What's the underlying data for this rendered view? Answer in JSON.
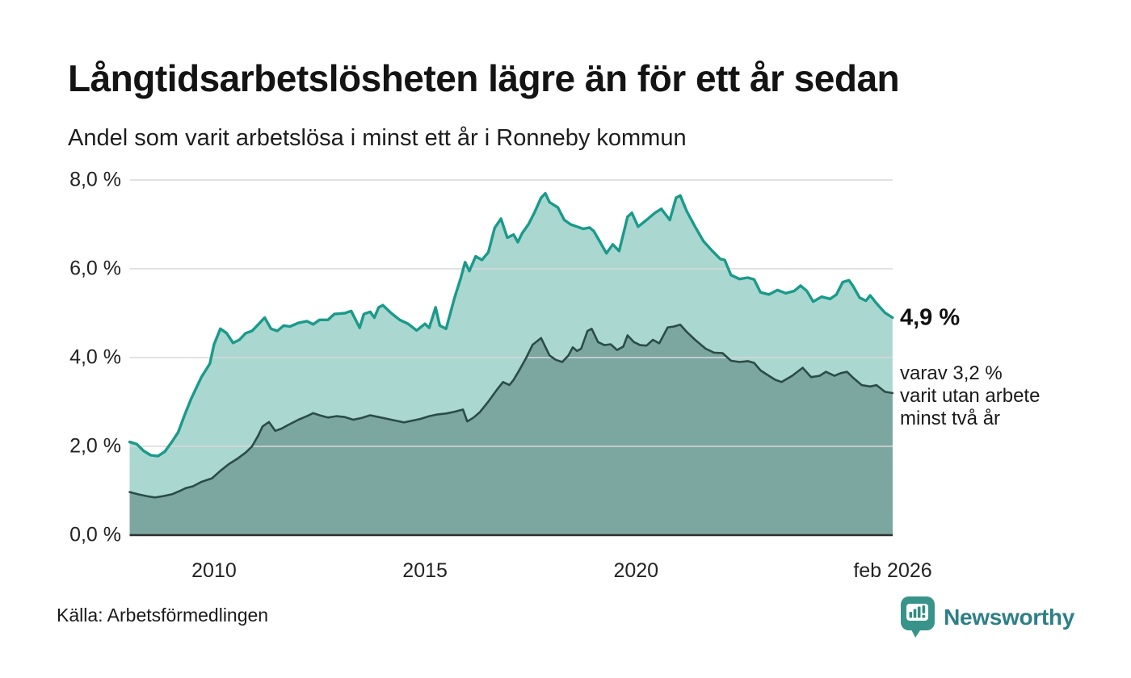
{
  "header": {
    "title": "Långtidsarbetslösheten lägre än för ett år sedan",
    "subtitle": "Andel som varit arbetslösa i minst ett år i Ronneby kommun"
  },
  "chart_data": {
    "type": "area",
    "title": "Långtidsarbetslösheten lägre än för ett år sedan",
    "subtitle": "Andel som varit arbetslösa i minst ett år i Ronneby kommun",
    "unit": "%",
    "grid": true,
    "x_axis": {
      "range": [
        2008.0,
        2026.083
      ],
      "ticks": [
        {
          "label": "2010",
          "year": 2010
        },
        {
          "label": "2015",
          "year": 2015
        },
        {
          "label": "2020",
          "year": 2020
        },
        {
          "label": "feb 2026",
          "year": 2026.083
        }
      ]
    },
    "y_axis": {
      "range": [
        0,
        8
      ],
      "ticks": [
        {
          "label": "8,0 %",
          "value": 8
        },
        {
          "label": "6,0 %",
          "value": 6
        },
        {
          "label": "4,0 %",
          "value": 4
        },
        {
          "label": "2,0 %",
          "value": 2
        },
        {
          "label": "0,0 %",
          "value": 0
        }
      ]
    },
    "series": [
      {
        "name": "arbetslösa i minst ett år",
        "color": "#1a9a8a",
        "fill": "#aad7d0",
        "last_value_label": "4,9 %",
        "points": [
          [
            2008.0,
            2.1
          ],
          [
            2008.17,
            2.05
          ],
          [
            2008.33,
            1.9
          ],
          [
            2008.5,
            1.8
          ],
          [
            2008.67,
            1.78
          ],
          [
            2008.83,
            1.88
          ],
          [
            2009.0,
            2.1
          ],
          [
            2009.15,
            2.32
          ],
          [
            2009.3,
            2.7
          ],
          [
            2009.46,
            3.08
          ],
          [
            2009.7,
            3.56
          ],
          [
            2009.9,
            3.86
          ],
          [
            2010.0,
            4.3
          ],
          [
            2010.15,
            4.65
          ],
          [
            2010.3,
            4.55
          ],
          [
            2010.45,
            4.33
          ],
          [
            2010.6,
            4.4
          ],
          [
            2010.75,
            4.55
          ],
          [
            2010.9,
            4.6
          ],
          [
            2011.05,
            4.75
          ],
          [
            2011.2,
            4.9
          ],
          [
            2011.35,
            4.65
          ],
          [
            2011.5,
            4.6
          ],
          [
            2011.65,
            4.72
          ],
          [
            2011.8,
            4.7
          ],
          [
            2012.0,
            4.78
          ],
          [
            2012.2,
            4.82
          ],
          [
            2012.35,
            4.75
          ],
          [
            2012.5,
            4.85
          ],
          [
            2012.7,
            4.85
          ],
          [
            2012.85,
            4.98
          ],
          [
            2013.1,
            5.0
          ],
          [
            2013.25,
            5.05
          ],
          [
            2013.45,
            4.67
          ],
          [
            2013.55,
            4.98
          ],
          [
            2013.7,
            5.03
          ],
          [
            2013.8,
            4.9
          ],
          [
            2013.9,
            5.13
          ],
          [
            2014.0,
            5.18
          ],
          [
            2014.2,
            5.0
          ],
          [
            2014.4,
            4.85
          ],
          [
            2014.6,
            4.76
          ],
          [
            2014.8,
            4.61
          ],
          [
            2015.0,
            4.76
          ],
          [
            2015.1,
            4.67
          ],
          [
            2015.25,
            5.13
          ],
          [
            2015.35,
            4.72
          ],
          [
            2015.5,
            4.65
          ],
          [
            2015.7,
            5.35
          ],
          [
            2015.85,
            5.8
          ],
          [
            2015.95,
            6.15
          ],
          [
            2016.05,
            5.95
          ],
          [
            2016.2,
            6.28
          ],
          [
            2016.35,
            6.2
          ],
          [
            2016.5,
            6.37
          ],
          [
            2016.65,
            6.92
          ],
          [
            2016.8,
            7.13
          ],
          [
            2016.95,
            6.7
          ],
          [
            2017.1,
            6.77
          ],
          [
            2017.2,
            6.6
          ],
          [
            2017.3,
            6.8
          ],
          [
            2017.45,
            7.0
          ],
          [
            2017.6,
            7.28
          ],
          [
            2017.75,
            7.6
          ],
          [
            2017.85,
            7.7
          ],
          [
            2017.95,
            7.5
          ],
          [
            2018.05,
            7.44
          ],
          [
            2018.15,
            7.38
          ],
          [
            2018.3,
            7.1
          ],
          [
            2018.45,
            7.0
          ],
          [
            2018.6,
            6.95
          ],
          [
            2018.75,
            6.9
          ],
          [
            2018.9,
            6.93
          ],
          [
            2019.0,
            6.85
          ],
          [
            2019.15,
            6.6
          ],
          [
            2019.3,
            6.35
          ],
          [
            2019.45,
            6.55
          ],
          [
            2019.6,
            6.4
          ],
          [
            2019.8,
            7.17
          ],
          [
            2019.9,
            7.26
          ],
          [
            2020.05,
            6.95
          ],
          [
            2020.25,
            7.1
          ],
          [
            2020.45,
            7.26
          ],
          [
            2020.6,
            7.35
          ],
          [
            2020.8,
            7.1
          ],
          [
            2020.95,
            7.6
          ],
          [
            2021.05,
            7.65
          ],
          [
            2021.2,
            7.3
          ],
          [
            2021.4,
            6.95
          ],
          [
            2021.6,
            6.62
          ],
          [
            2021.8,
            6.41
          ],
          [
            2022.0,
            6.22
          ],
          [
            2022.1,
            6.2
          ],
          [
            2022.25,
            5.86
          ],
          [
            2022.45,
            5.77
          ],
          [
            2022.65,
            5.8
          ],
          [
            2022.8,
            5.76
          ],
          [
            2022.95,
            5.47
          ],
          [
            2023.15,
            5.42
          ],
          [
            2023.35,
            5.52
          ],
          [
            2023.55,
            5.45
          ],
          [
            2023.75,
            5.5
          ],
          [
            2023.9,
            5.62
          ],
          [
            2024.05,
            5.5
          ],
          [
            2024.2,
            5.26
          ],
          [
            2024.4,
            5.37
          ],
          [
            2024.6,
            5.32
          ],
          [
            2024.75,
            5.42
          ],
          [
            2024.9,
            5.7
          ],
          [
            2025.05,
            5.74
          ],
          [
            2025.15,
            5.6
          ],
          [
            2025.3,
            5.35
          ],
          [
            2025.45,
            5.28
          ],
          [
            2025.55,
            5.4
          ],
          [
            2025.7,
            5.22
          ],
          [
            2025.9,
            5.01
          ],
          [
            2026.08,
            4.9
          ]
        ]
      },
      {
        "name": "varit utan arbete minst två år",
        "color": "#2b4c48",
        "fill": "#7ca7a1",
        "last_value_label": "3,2 %",
        "points": [
          [
            2008.0,
            0.97
          ],
          [
            2008.2,
            0.92
          ],
          [
            2008.4,
            0.88
          ],
          [
            2008.6,
            0.85
          ],
          [
            2008.8,
            0.88
          ],
          [
            2009.0,
            0.92
          ],
          [
            2009.2,
            1.0
          ],
          [
            2009.33,
            1.06
          ],
          [
            2009.5,
            1.1
          ],
          [
            2009.7,
            1.2
          ],
          [
            2009.95,
            1.28
          ],
          [
            2010.15,
            1.45
          ],
          [
            2010.35,
            1.6
          ],
          [
            2010.55,
            1.72
          ],
          [
            2010.75,
            1.86
          ],
          [
            2010.9,
            2.0
          ],
          [
            2011.05,
            2.25
          ],
          [
            2011.15,
            2.45
          ],
          [
            2011.3,
            2.55
          ],
          [
            2011.45,
            2.35
          ],
          [
            2011.6,
            2.4
          ],
          [
            2011.75,
            2.48
          ],
          [
            2012.0,
            2.6
          ],
          [
            2012.2,
            2.68
          ],
          [
            2012.35,
            2.75
          ],
          [
            2012.5,
            2.7
          ],
          [
            2012.7,
            2.65
          ],
          [
            2012.9,
            2.68
          ],
          [
            2013.1,
            2.66
          ],
          [
            2013.3,
            2.6
          ],
          [
            2013.5,
            2.64
          ],
          [
            2013.7,
            2.7
          ],
          [
            2013.9,
            2.66
          ],
          [
            2014.1,
            2.62
          ],
          [
            2014.3,
            2.58
          ],
          [
            2014.5,
            2.54
          ],
          [
            2014.7,
            2.58
          ],
          [
            2014.9,
            2.62
          ],
          [
            2015.1,
            2.68
          ],
          [
            2015.3,
            2.72
          ],
          [
            2015.5,
            2.74
          ],
          [
            2015.7,
            2.78
          ],
          [
            2015.9,
            2.83
          ],
          [
            2016.0,
            2.56
          ],
          [
            2016.15,
            2.65
          ],
          [
            2016.3,
            2.77
          ],
          [
            2016.5,
            3.01
          ],
          [
            2016.7,
            3.27
          ],
          [
            2016.85,
            3.45
          ],
          [
            2017.0,
            3.38
          ],
          [
            2017.1,
            3.5
          ],
          [
            2017.25,
            3.74
          ],
          [
            2017.4,
            4.0
          ],
          [
            2017.55,
            4.29
          ],
          [
            2017.75,
            4.44
          ],
          [
            2017.95,
            4.05
          ],
          [
            2018.1,
            3.95
          ],
          [
            2018.25,
            3.9
          ],
          [
            2018.4,
            4.05
          ],
          [
            2018.5,
            4.23
          ],
          [
            2018.6,
            4.15
          ],
          [
            2018.7,
            4.2
          ],
          [
            2018.85,
            4.6
          ],
          [
            2018.95,
            4.65
          ],
          [
            2019.1,
            4.35
          ],
          [
            2019.25,
            4.28
          ],
          [
            2019.4,
            4.3
          ],
          [
            2019.55,
            4.17
          ],
          [
            2019.7,
            4.25
          ],
          [
            2019.8,
            4.5
          ],
          [
            2019.95,
            4.35
          ],
          [
            2020.1,
            4.28
          ],
          [
            2020.25,
            4.27
          ],
          [
            2020.4,
            4.4
          ],
          [
            2020.55,
            4.32
          ],
          [
            2020.75,
            4.68
          ],
          [
            2020.9,
            4.7
          ],
          [
            2021.05,
            4.74
          ],
          [
            2021.2,
            4.58
          ],
          [
            2021.4,
            4.4
          ],
          [
            2021.65,
            4.2
          ],
          [
            2021.85,
            4.11
          ],
          [
            2022.05,
            4.1
          ],
          [
            2022.25,
            3.93
          ],
          [
            2022.45,
            3.9
          ],
          [
            2022.65,
            3.92
          ],
          [
            2022.8,
            3.88
          ],
          [
            2022.95,
            3.71
          ],
          [
            2023.15,
            3.59
          ],
          [
            2023.3,
            3.5
          ],
          [
            2023.45,
            3.45
          ],
          [
            2023.7,
            3.59
          ],
          [
            2023.95,
            3.77
          ],
          [
            2024.15,
            3.56
          ],
          [
            2024.35,
            3.59
          ],
          [
            2024.5,
            3.68
          ],
          [
            2024.7,
            3.59
          ],
          [
            2024.85,
            3.65
          ],
          [
            2025.0,
            3.68
          ],
          [
            2025.15,
            3.54
          ],
          [
            2025.35,
            3.38
          ],
          [
            2025.55,
            3.35
          ],
          [
            2025.7,
            3.38
          ],
          [
            2025.9,
            3.23
          ],
          [
            2026.08,
            3.2
          ]
        ]
      }
    ],
    "annotations": {
      "primary_value": "4,9 %",
      "primary_value_numeric": 4.9,
      "secondary_lines": [
        "varav 3,2 %",
        "varit utan arbete",
        "minst två år"
      ]
    },
    "colors": {
      "gridline": "#d9d9d9",
      "baseline": "#303030",
      "accent_teal": "#1a9a8a",
      "brand_teal": "#2d7f87"
    }
  },
  "footer": {
    "source": "Källa: Arbetsförmedlingen",
    "brand": "Newsworthy"
  }
}
